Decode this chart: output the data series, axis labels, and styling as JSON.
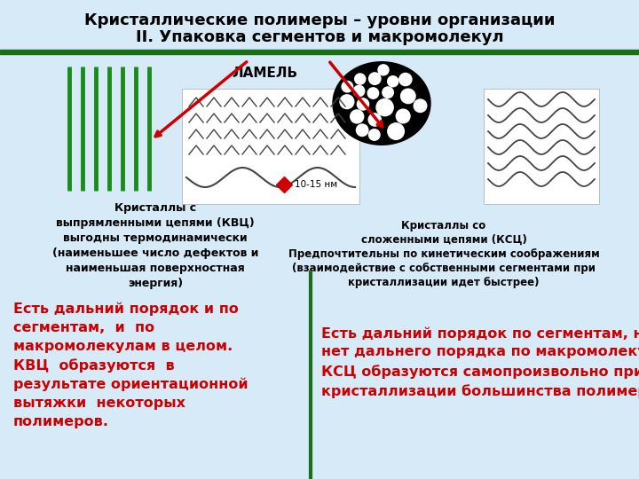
{
  "title_line1": "Кристаллические полимеры – уровни организации",
  "title_line2": "II. Упаковка сегментов и макромолекул",
  "bg_color": "#d6eaf8",
  "header_bar_color": "#1a6e1a",
  "title_color": "#000000",
  "lamelle_label": "ЛАМЕЛЬ",
  "kvts_caption": "Кристаллы с\nвыпрямленными цепями (КВЦ)\nвыгодны термодинамически\n(наименьшее число дефектов и\nнаименьшая поверхностная\nэнергия)",
  "kstsz_caption": "Кристаллы со\nсложенными цепями (КСЦ)\nПредпочтительны по кинетическим соображениям\n(взаимодействие с собственными сегментами при\nкристаллизации идет быстрее)",
  "text_left_bold": "Есть дальний порядок и по\nсегментам,  и  по\nмакромолекулам в целом.\nКВЦ  образуются  в\nрезультате ориентационной\nвытяжки  некоторых\nполимеров.",
  "text_right_bold": "Есть дальний порядок по сегментам, но\nнет дальнего порядка по макромолекулам.\nКСЦ образуются самопроизвольно при\nкристаллизации большинства полимеров.",
  "arrow_color": "#cc0000",
  "green_color": "#1a8c1a",
  "divider_color": "#1a6e1a",
  "red_text_color": "#cc0000",
  "black_text_color": "#000000",
  "nm_label": "10-15 нм"
}
